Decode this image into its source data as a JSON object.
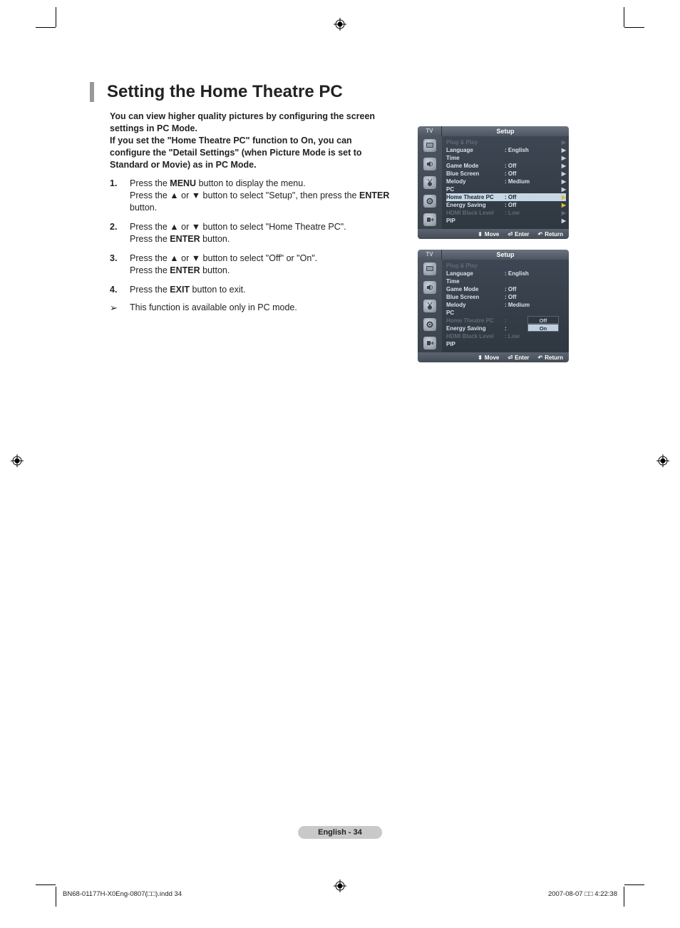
{
  "page": {
    "title": "Setting the Home Theatre PC",
    "intro_lines": [
      "You can view higher quality pictures by configuring the screen settings in PC Mode.",
      "If you set the \"Home Theatre PC\" function to On, you can configure the \"Detail Settings\" (when Picture Mode is set to Standard or Movie) as in PC Mode."
    ],
    "steps": [
      {
        "n": "1.",
        "html": "Press the <b>MENU</b> button to display the menu.<br>Press the ▲ or ▼ button to select \"Setup\", then press the <b>ENTER</b> button."
      },
      {
        "n": "2.",
        "html": "Press the ▲ or ▼ button to select \"Home Theatre PC\".<br>Press the <b>ENTER</b> button."
      },
      {
        "n": "3.",
        "html": "Press the ▲ or ▼ button to select \"Off\" or \"On\".<br>Press the <b>ENTER</b> button."
      },
      {
        "n": "4.",
        "html": "Press the <b>EXIT</b> button to exit."
      }
    ],
    "note": "This function is available only in PC mode.",
    "page_indicator": "English - 34"
  },
  "osd1": {
    "tv": "TV",
    "title": "Setup",
    "rows": [
      {
        "label": "Plug & Play",
        "value": "",
        "dim": true,
        "chev": true
      },
      {
        "label": "Language",
        "value": ": English",
        "chev": true
      },
      {
        "label": "Time",
        "value": "",
        "chev": true
      },
      {
        "label": "Game Mode",
        "value": ": Off",
        "chev": true
      },
      {
        "label": "Blue Screen",
        "value": ": Off",
        "chev": true
      },
      {
        "label": "Melody",
        "value": ": Medium",
        "chev": true
      },
      {
        "label": "PC",
        "value": "",
        "chev": true
      },
      {
        "label": "Home Theatre PC",
        "value": ": Off",
        "hl": true,
        "chev": true
      },
      {
        "label": "Energy Saving",
        "value": ": Off",
        "chev": true,
        "hl_yellow_chev": true
      },
      {
        "label": "HDMI Black Level",
        "value": ": Low",
        "dim": true,
        "chev": true
      },
      {
        "label": "PIP",
        "value": "",
        "chev": true
      }
    ],
    "footer": {
      "move": "Move",
      "enter": "Enter",
      "ret": "Return"
    }
  },
  "osd2": {
    "tv": "TV",
    "title": "Setup",
    "rows": [
      {
        "label": "Plug & Play",
        "value": "",
        "dim": true
      },
      {
        "label": "Language",
        "value": ": English"
      },
      {
        "label": "Time",
        "value": ""
      },
      {
        "label": "Game Mode",
        "value": ": Off"
      },
      {
        "label": "Blue Screen",
        "value": ": Off"
      },
      {
        "label": "Melody",
        "value": ": Medium"
      },
      {
        "label": "PC",
        "value": ""
      },
      {
        "label": "Home Theatre PC",
        "value": ":",
        "dim": true,
        "options": [
          "Off",
          "On"
        ],
        "selected": "On"
      },
      {
        "label": "Energy Saving",
        "value": ":"
      },
      {
        "label": "HDMI Black Level",
        "value": ": Low",
        "dim": true
      },
      {
        "label": "PIP",
        "value": ""
      }
    ],
    "footer": {
      "move": "Move",
      "enter": "Enter",
      "ret": "Return"
    }
  },
  "print": {
    "left": "BN68-01177H-X0Eng-0807(□□).indd   34",
    "right": "2007-08-07   □□ 4:22:38"
  }
}
